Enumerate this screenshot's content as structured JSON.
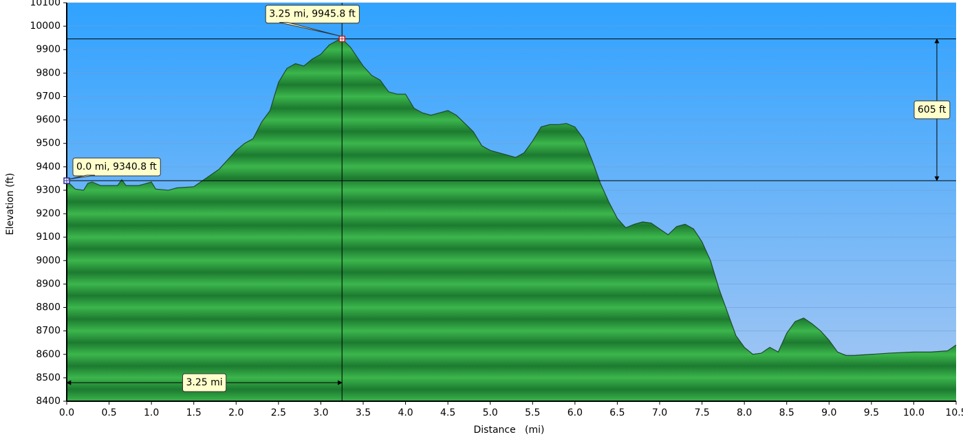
{
  "chart_data": {
    "type": "area",
    "x_label": "Distance   (mi)",
    "y_label": "Elevation (ft)",
    "color": "#22963a",
    "grid": true,
    "xlim": [
      0,
      10.5
    ],
    "ylim": [
      8400,
      10100
    ],
    "xticks": [
      {
        "value": 0,
        "label": "0.0"
      },
      0.5,
      {
        "value": 1,
        "label": "1.0"
      },
      1.5,
      {
        "value": 2,
        "label": "2.0"
      },
      2.5,
      {
        "value": 3,
        "label": "3.0"
      },
      3.5,
      {
        "value": 4,
        "label": "4.0"
      },
      4.5,
      {
        "value": 5,
        "label": "5.0"
      },
      5.5,
      {
        "value": 6,
        "label": "6.0"
      },
      6.5,
      {
        "value": 7,
        "label": "7.0"
      },
      7.5,
      {
        "value": 8,
        "label": "8.0"
      },
      8.5,
      {
        "value": 9,
        "label": "9.0"
      },
      9.5,
      {
        "value": 10,
        "label": "10.0"
      },
      10.5
    ],
    "yticks": [
      8400,
      8500,
      8600,
      8700,
      8800,
      8900,
      9000,
      9100,
      9200,
      9300,
      9400,
      9500,
      9600,
      9700,
      9800,
      9900,
      10000,
      10100
    ],
    "x": [
      0,
      0.1,
      0.2,
      0.25,
      0.3,
      0.4,
      0.5,
      0.6,
      0.65,
      0.7,
      0.85,
      0.9,
      1.0,
      1.05,
      1.2,
      1.3,
      1.5,
      1.6,
      1.8,
      2.0,
      2.1,
      2.2,
      2.3,
      2.4,
      2.5,
      2.6,
      2.7,
      2.8,
      2.9,
      3.0,
      3.1,
      3.2,
      3.25,
      3.35,
      3.5,
      3.6,
      3.7,
      3.8,
      3.9,
      4.0,
      4.1,
      4.2,
      4.3,
      4.4,
      4.5,
      4.6,
      4.8,
      4.9,
      5.0,
      5.2,
      5.3,
      5.4,
      5.5,
      5.6,
      5.7,
      5.8,
      5.9,
      6.0,
      6.1,
      6.2,
      6.3,
      6.4,
      6.5,
      6.6,
      6.7,
      6.8,
      6.9,
      7.0,
      7.1,
      7.2,
      7.3,
      7.4,
      7.5,
      7.6,
      7.7,
      7.8,
      7.9,
      8.0,
      8.1,
      8.2,
      8.3,
      8.4,
      8.5,
      8.6,
      8.7,
      8.8,
      8.9,
      9.0,
      9.1,
      9.2,
      9.3,
      9.5,
      9.7,
      10.0,
      10.2,
      10.4,
      10.5
    ],
    "values": [
      9340.8,
      9305,
      9300,
      9330,
      9335,
      9320,
      9320,
      9320,
      9345,
      9320,
      9320,
      9325,
      9335,
      9305,
      9300,
      9310,
      9315,
      9340,
      9390,
      9470,
      9500,
      9520,
      9590,
      9640,
      9760,
      9820,
      9840,
      9830,
      9860,
      9880,
      9920,
      9940,
      9945.8,
      9910,
      9830,
      9790,
      9770,
      9720,
      9710,
      9710,
      9650,
      9630,
      9620,
      9630,
      9640,
      9620,
      9550,
      9490,
      9470,
      9450,
      9440,
      9460,
      9510,
      9570,
      9580,
      9580,
      9585,
      9570,
      9520,
      9430,
      9330,
      9250,
      9180,
      9140,
      9155,
      9165,
      9160,
      9135,
      9110,
      9145,
      9155,
      9135,
      9080,
      9000,
      8880,
      8780,
      8680,
      8630,
      8600,
      8605,
      8630,
      8610,
      8690,
      8740,
      8755,
      8730,
      8700,
      8660,
      8610,
      8595,
      8595,
      8600,
      8605,
      8610,
      8610,
      8615,
      8640
    ],
    "markers": [
      {
        "x": 0,
        "y": 9340.8,
        "label": "0.0 mi, 9340.8 ft"
      },
      {
        "x": 3.25,
        "y": 9945.8,
        "label": "3.25 mi, 9945.8 ft"
      }
    ],
    "elevation_difference": {
      "value": 605,
      "label": "605 ft"
    },
    "distance_difference": {
      "value": 3.25,
      "label": "3.25 mi"
    }
  }
}
